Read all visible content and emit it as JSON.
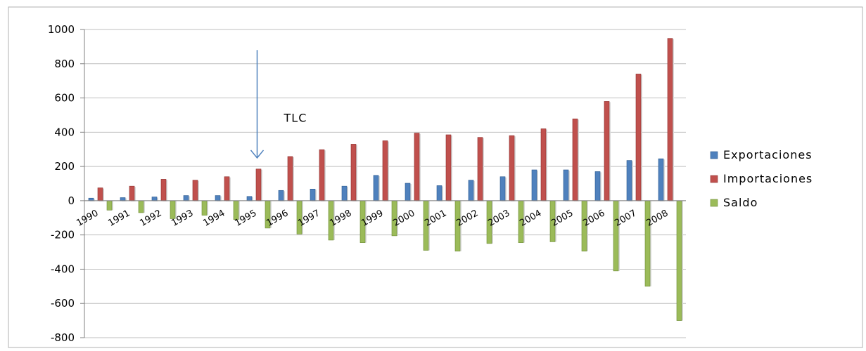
{
  "chart_data": {
    "type": "bar",
    "title": "",
    "xlabel": "",
    "ylabel": "",
    "ylim": [
      -800,
      1000
    ],
    "yticks": [
      1000,
      800,
      600,
      400,
      200,
      0,
      -200,
      -400,
      -600,
      -800
    ],
    "grid": true,
    "legend": "right",
    "categories": [
      "1990",
      "1991",
      "1992",
      "1993",
      "1994",
      "1995",
      "1996",
      "1997",
      "1998",
      "1999",
      "2000",
      "2001",
      "2002",
      "2003",
      "2004",
      "2005",
      "2006",
      "2007",
      "2008"
    ],
    "series": [
      {
        "name": "Exportaciones",
        "color": "#4f81bd",
        "values": [
          15,
          18,
          22,
          30,
          30,
          25,
          60,
          68,
          85,
          148,
          102,
          88,
          120,
          140,
          180,
          180,
          170,
          235,
          245
        ]
      },
      {
        "name": "Importaciones",
        "color": "#c0504d",
        "values": [
          75,
          85,
          125,
          120,
          140,
          185,
          258,
          298,
          330,
          350,
          395,
          385,
          370,
          380,
          420,
          478,
          580,
          740,
          948
        ]
      },
      {
        "name": "Saldo",
        "color": "#9bbb59",
        "values": [
          -55,
          -70,
          -105,
          -85,
          -110,
          -160,
          -195,
          -230,
          -245,
          -205,
          -290,
          -295,
          -250,
          -245,
          -240,
          -295,
          -410,
          -500,
          -700
        ]
      }
    ],
    "annotations": [
      {
        "text": "TLC",
        "category": "1995",
        "arrow_from": 880,
        "arrow_to": 250
      }
    ]
  }
}
